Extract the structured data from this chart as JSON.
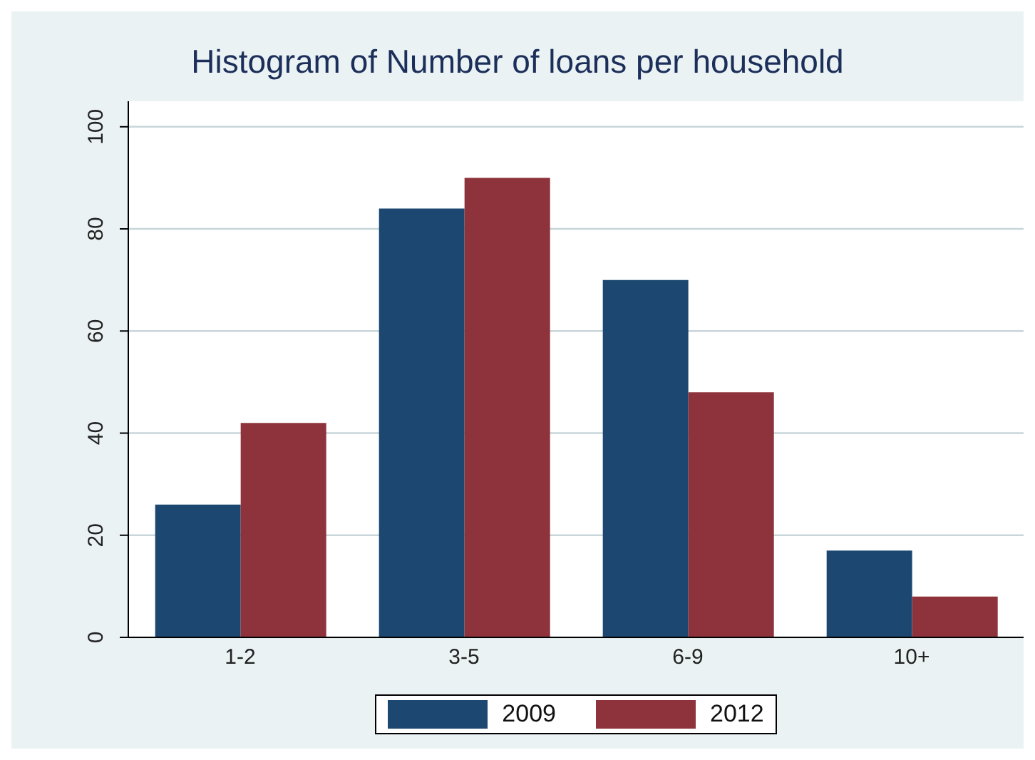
{
  "chart_data": {
    "type": "bar",
    "title": "Histogram of Number of loans per household",
    "categories": [
      "1-2",
      "3-5",
      "6-9",
      "10+"
    ],
    "series": [
      {
        "name": "2009",
        "color": "#1c4770",
        "values": [
          26,
          84,
          70,
          17
        ]
      },
      {
        "name": "2012",
        "color": "#8e333b",
        "values": [
          42,
          90,
          48,
          8
        ]
      }
    ],
    "ylim": [
      0,
      105
    ],
    "yticks": [
      0,
      20,
      40,
      60,
      80,
      100
    ],
    "grid": "y",
    "legend": "bottom"
  }
}
